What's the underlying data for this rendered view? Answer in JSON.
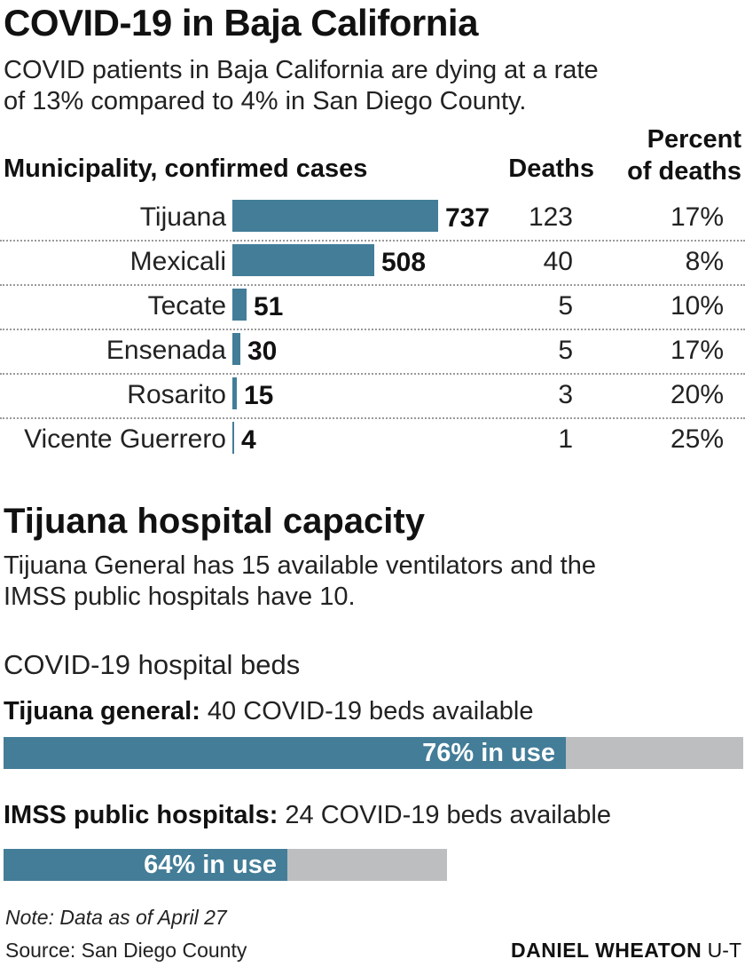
{
  "header": {
    "title": "COVID-19 in Baja California",
    "subtitle_lines": [
      "COVID patients in Baja California are dying at a rate",
      "of 13% compared to 4% in San Diego County."
    ]
  },
  "table": {
    "col_municipality": "Municipality, confirmed cases",
    "col_deaths": "Deaths",
    "col_percent_line1": "Percent",
    "col_percent_line2": "of deaths"
  },
  "chart_data": [
    {
      "type": "bar",
      "orientation": "horizontal",
      "categories": [
        "Tijuana",
        "Mexicali",
        "Tecate",
        "Ensenada",
        "Rosarito",
        "Vicente Guerrero"
      ],
      "values": [
        737,
        508,
        51,
        30,
        15,
        4
      ],
      "deaths": [
        "123",
        "40",
        "5",
        "5",
        "3",
        "1"
      ],
      "percent_of_deaths": [
        "17%",
        "8%",
        "10%",
        "17%",
        "20%",
        "25%"
      ],
      "bar_color": "#437d98"
    },
    {
      "type": "bar",
      "orientation": "horizontal",
      "stacked": true,
      "bars": [
        {
          "label_bold": "Tijuana general:",
          "label_rest": " 40 COVID-19 beds available",
          "in_use_percent": 76,
          "in_use_label": "76% in use",
          "relative_total": 1.0
        },
        {
          "label_bold": "IMSS public hospitals:",
          "label_rest": " 24 COVID-19 beds available",
          "in_use_percent": 64,
          "in_use_label": "64% in use",
          "relative_total": 0.6
        }
      ],
      "fill_color": "#437d98",
      "track_color": "#bcbec0"
    }
  ],
  "capacity": {
    "heading": "Tijuana hospital capacity",
    "text_lines": [
      "Tijuana General has 15 available ventilators and the",
      "IMSS public hospitals have 10."
    ],
    "beds_heading": "COVID-19 hospital beds"
  },
  "footer": {
    "note": "Note: Data as of April 27",
    "source": "Source: San Diego County",
    "credit_name": "DANIEL WHEATON",
    "credit_org": " U-T"
  }
}
